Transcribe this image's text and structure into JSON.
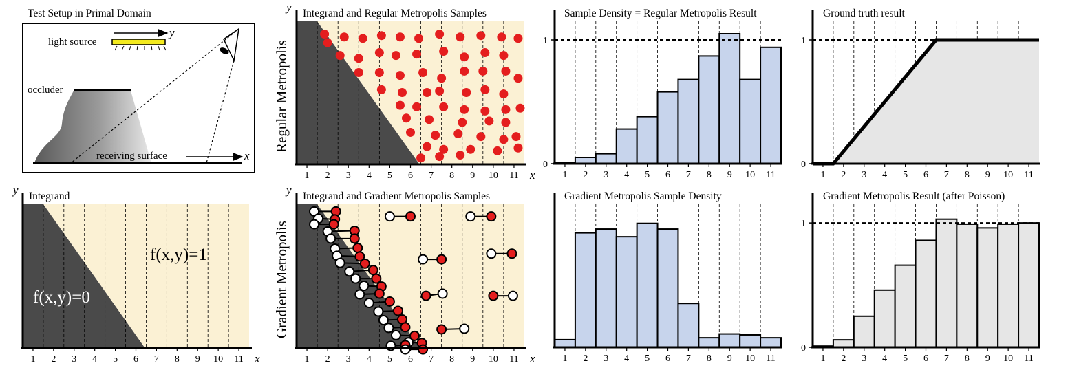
{
  "colors": {
    "dark_region": "#4a4a4a",
    "light_region": "#fbf1d4",
    "sample_red": "#e41e1e",
    "bar_blue": "#c7d4ec",
    "bar_gray": "#e6e6e6",
    "light_bar": "#f3ea1e"
  },
  "setup": {
    "title": "Test Setup in Primal Domain",
    "light_source": "light source",
    "occluder": "occluder",
    "receiving_surface": "receiving surface",
    "axis_x": "x",
    "axis_y": "y"
  },
  "integrand": {
    "title": "Integrand",
    "f0": "f(x,y)=0",
    "f1": "f(x,y)=1",
    "axis_x": "x",
    "axis_y": "y"
  },
  "regular": {
    "title": "Integrand and Regular Metropolis Samples",
    "side_label": "Regular Metropolis",
    "axis_x": "x",
    "axis_y": "y"
  },
  "gradient": {
    "title": "Integrand and Gradient Metropolis Samples",
    "side_label": "Gradient Metropolis",
    "axis_x": "x",
    "axis_y": "y"
  },
  "x_ticks": [
    "1",
    "2",
    "3",
    "4",
    "5",
    "6",
    "7",
    "8",
    "9",
    "10",
    "11"
  ],
  "chart_data": [
    {
      "type": "bar",
      "title": "Sample Density = Regular Metropolis Result",
      "categories": [
        "1",
        "2",
        "3",
        "4",
        "5",
        "6",
        "7",
        "8",
        "9",
        "10",
        "11"
      ],
      "values": [
        0.01,
        0.05,
        0.08,
        0.28,
        0.38,
        0.58,
        0.68,
        0.87,
        1.05,
        0.68,
        0.94
      ],
      "ylim": [
        0,
        1.15
      ],
      "y_ticks": [
        "0",
        "1"
      ],
      "reference_line": 1
    },
    {
      "type": "area",
      "title": "Ground truth result",
      "x": [
        0,
        1,
        6,
        11
      ],
      "y": [
        0,
        0,
        1,
        1
      ],
      "xlim": [
        0,
        11
      ],
      "ylim": [
        0,
        1.15
      ],
      "y_ticks": [
        "0",
        "1"
      ],
      "reference_line": 1
    },
    {
      "type": "bar",
      "title": "Gradient Metropolis Sample Density",
      "categories": [
        "1",
        "2",
        "3",
        "4",
        "5",
        "6",
        "7",
        "8",
        "9",
        "10",
        "11"
      ],
      "values": [
        0.04,
        0.6,
        0.62,
        0.58,
        0.65,
        0.62,
        0.23,
        0.05,
        0.07,
        0.065,
        0.05
      ],
      "ylim": [
        0,
        0.75
      ]
    },
    {
      "type": "bar",
      "title": "Gradient Metropolis Result (after Poisson)",
      "categories": [
        "1",
        "2",
        "3",
        "4",
        "5",
        "6",
        "7",
        "8",
        "9",
        "10",
        "11"
      ],
      "values": [
        0.01,
        0.06,
        0.25,
        0.46,
        0.66,
        0.86,
        1.03,
        0.99,
        0.96,
        0.99,
        1.0
      ],
      "ylim": [
        0,
        1.15
      ],
      "y_ticks": [
        "0",
        "1"
      ],
      "reference_line": 1
    }
  ],
  "regular_samples": [
    [
      1.85,
      9.1
    ],
    [
      2.0,
      8.5
    ],
    [
      2.8,
      8.9
    ],
    [
      3.7,
      8.8
    ],
    [
      2.6,
      7.6
    ],
    [
      3.5,
      7.4
    ],
    [
      4.6,
      9.0
    ],
    [
      5.5,
      8.9
    ],
    [
      6.4,
      8.8
    ],
    [
      7.4,
      9.1
    ],
    [
      8.4,
      8.9
    ],
    [
      9.4,
      9.0
    ],
    [
      10.4,
      8.9
    ],
    [
      11.2,
      8.8
    ],
    [
      4.5,
      7.8
    ],
    [
      5.3,
      7.6
    ],
    [
      6.3,
      7.7
    ],
    [
      7.6,
      7.9
    ],
    [
      8.6,
      7.5
    ],
    [
      9.6,
      7.8
    ],
    [
      10.5,
      7.6
    ],
    [
      3.5,
      6.4
    ],
    [
      4.5,
      6.4
    ],
    [
      5.5,
      6.2
    ],
    [
      6.6,
      6.4
    ],
    [
      7.5,
      6.0
    ],
    [
      8.6,
      6.5
    ],
    [
      9.5,
      6.5
    ],
    [
      10.6,
      6.5
    ],
    [
      11.2,
      6.0
    ],
    [
      4.6,
      5.2
    ],
    [
      5.6,
      5.0
    ],
    [
      6.8,
      5.0
    ],
    [
      7.4,
      5.1
    ],
    [
      8.7,
      5.0
    ],
    [
      9.6,
      5.2
    ],
    [
      10.5,
      4.9
    ],
    [
      5.5,
      4.1
    ],
    [
      6.3,
      4.0
    ],
    [
      7.6,
      4.0
    ],
    [
      8.6,
      3.8
    ],
    [
      9.6,
      3.7
    ],
    [
      10.6,
      3.8
    ],
    [
      11.3,
      3.9
    ],
    [
      5.8,
      3.2
    ],
    [
      6.9,
      3.1
    ],
    [
      8.5,
      2.9
    ],
    [
      9.8,
      3.0
    ],
    [
      10.6,
      2.9
    ],
    [
      6.0,
      2.2
    ],
    [
      7.2,
      2.0
    ],
    [
      8.3,
      2.1
    ],
    [
      9.4,
      1.9
    ],
    [
      10.5,
      1.7
    ],
    [
      11.1,
      1.9
    ],
    [
      6.8,
      1.2
    ],
    [
      7.6,
      1.0
    ],
    [
      8.9,
      1.0
    ],
    [
      10.2,
      0.9
    ],
    [
      11.2,
      1.1
    ],
    [
      6.5,
      0.4
    ],
    [
      7.4,
      0.5
    ],
    [
      8.4,
      0.6
    ]
  ],
  "gradient_pairs": [
    [
      1.35,
      9.5,
      2.4,
      9.5
    ],
    [
      1.55,
      9.0,
      2.35,
      8.95
    ],
    [
      1.35,
      8.6,
      2.3,
      8.6
    ],
    [
      2.0,
      8.1,
      3.3,
      8.15
    ],
    [
      2.15,
      7.6,
      3.3,
      7.6
    ],
    [
      2.35,
      6.9,
      3.45,
      6.95
    ],
    [
      2.45,
      6.4,
      3.55,
      6.35
    ],
    [
      2.6,
      5.9,
      3.8,
      5.85
    ],
    [
      3.05,
      5.3,
      4.2,
      5.4
    ],
    [
      3.35,
      4.8,
      4.35,
      4.8
    ],
    [
      3.75,
      4.3,
      4.6,
      4.25
    ],
    [
      3.55,
      3.7,
      4.5,
      3.75
    ],
    [
      4.0,
      3.1,
      5.0,
      3.2
    ],
    [
      4.45,
      2.5,
      5.4,
      2.55
    ],
    [
      4.7,
      1.9,
      5.6,
      1.95
    ],
    [
      4.95,
      1.35,
      5.75,
      1.4
    ],
    [
      5.3,
      0.85,
      6.2,
      0.8
    ],
    [
      5.9,
      0.35,
      6.55,
      0.3
    ],
    [
      5.05,
      0.1,
      5.75,
      0.15
    ],
    [
      5.75,
      -0.15,
      6.6,
      -0.15
    ],
    [
      5.0,
      9.15,
      6.0,
      9.15
    ],
    [
      8.9,
      9.15,
      9.9,
      9.15
    ],
    [
      6.6,
      6.15,
      7.5,
      6.15
    ],
    [
      9.9,
      6.55,
      10.9,
      6.55
    ],
    [
      7.55,
      3.75,
      6.75,
      3.6
    ],
    [
      10.95,
      3.6,
      10.0,
      3.6
    ],
    [
      8.6,
      1.3,
      7.5,
      1.25
    ]
  ]
}
